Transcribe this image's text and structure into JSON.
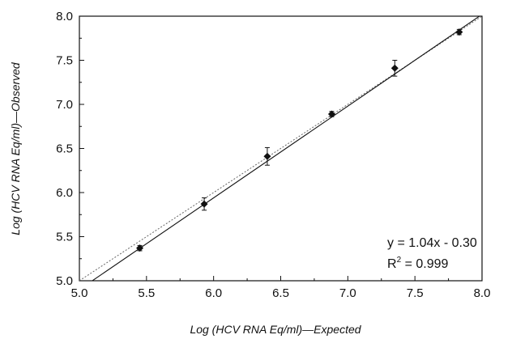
{
  "chart_data": {
    "type": "scatter",
    "xlabel": "Log (HCV RNA Eq/ml)—Expected",
    "ylabel": "Log (HCV RNA Eq/ml)—Observed",
    "xlim": [
      5.0,
      8.0
    ],
    "ylim": [
      5.0,
      8.0
    ],
    "x_ticks": [
      "5.0",
      "5.5",
      "6.0",
      "6.5",
      "7.0",
      "7.5",
      "8.0"
    ],
    "y_ticks": [
      "5.0",
      "5.5",
      "6.0",
      "6.5",
      "7.0",
      "7.5",
      "8.0"
    ],
    "grid": false,
    "points": [
      {
        "x": 5.45,
        "y": 5.37,
        "err": 0.03
      },
      {
        "x": 5.93,
        "y": 5.87,
        "err": 0.07
      },
      {
        "x": 6.4,
        "y": 6.41,
        "err": 0.1
      },
      {
        "x": 6.88,
        "y": 6.89,
        "err": 0.03
      },
      {
        "x": 7.35,
        "y": 7.41,
        "err": 0.09
      },
      {
        "x": 7.83,
        "y": 7.82,
        "err": 0.03
      }
    ],
    "fit_line": {
      "slope": 1.04,
      "intercept": -0.3,
      "style": "solid"
    },
    "identity_line": {
      "slope": 1.0,
      "intercept": 0.0,
      "style": "dotted"
    },
    "annotations": {
      "equation": "y = 1.04x - 0.30",
      "r2_prefix": "R",
      "r2_sup": "2",
      "r2_value": " = 0.999"
    }
  }
}
